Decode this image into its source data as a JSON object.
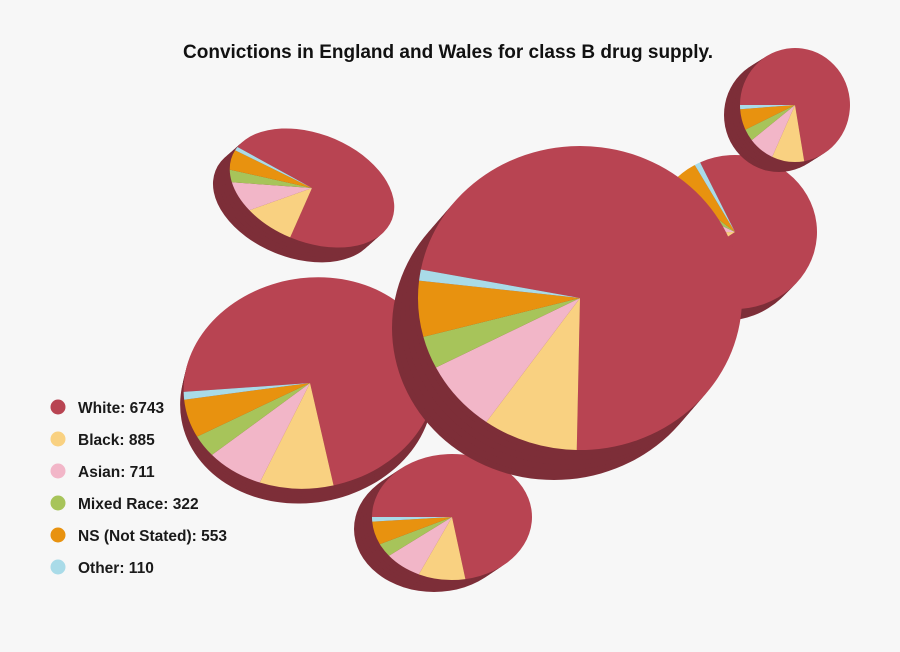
{
  "chart_data": {
    "type": "pie",
    "title": "Convictions in England and Wales for class B drug supply.",
    "legend_position": "bottom-left",
    "series": [
      {
        "name": "White",
        "value": 6743,
        "label": "White: 6743",
        "color": "#b84452"
      },
      {
        "name": "Black",
        "value": 885,
        "label": "Black: 885",
        "color": "#f9d181"
      },
      {
        "name": "Asian",
        "value": 711,
        "label": "Asian: 711",
        "color": "#f2b6c8"
      },
      {
        "name": "Mixed Race",
        "value": 322,
        "label": "Mixed Race: 322",
        "color": "#a7c45a"
      },
      {
        "name": "NS (Not Stated)",
        "value": 553,
        "label": "NS (Not Stated): 553",
        "color": "#e8920f"
      },
      {
        "name": "Other",
        "value": 110,
        "label": "Other: 110",
        "color": "#a9dbe8"
      }
    ]
  }
}
